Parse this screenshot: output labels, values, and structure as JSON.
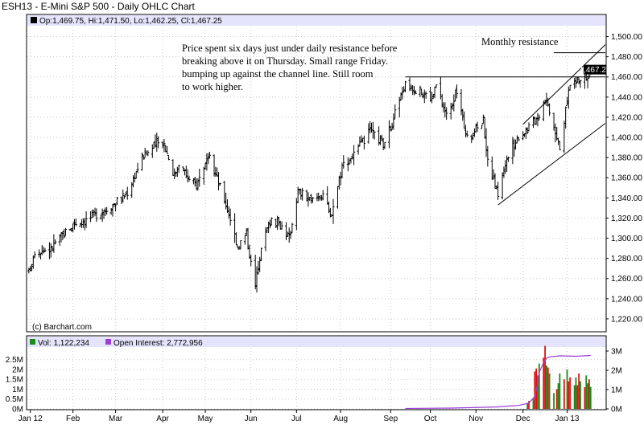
{
  "window": {
    "title": "ESH13 - E-Mini S&P 500 - Daily OHLC Chart"
  },
  "price_legend": {
    "text": "Op:1,469.75, Hi:1,471.50, Lo:1,462.25, Cl:1,467.25",
    "last_price": "1,467.25"
  },
  "volume_legend": {
    "volume_text": "Vol: 1,122,234",
    "oi_text": "Open Interest: 2,772,956"
  },
  "watermark": "(c) Barchart.com",
  "annotations": {
    "comment_lines": [
      "Price spent six days just under daily resistance before",
      "breaking above it on Thursday.  Small range Friday.",
      "bumping up against the channel line.  Still room",
      "to work higher."
    ],
    "monthly_resistance_label": "Monthly resistance"
  },
  "colors": {
    "panel_header": "#e4e4fc",
    "open_interest": "#9b3fd6",
    "volume_up": "#1a8a1a",
    "volume_down": "#e01010",
    "bars": "#000000"
  },
  "chart_data": [
    {
      "type": "ohlc",
      "title": "ESH13 - E-Mini S&P 500 - Daily OHLC Chart",
      "y_ticks": [
        1220,
        1240,
        1260,
        1280,
        1300,
        1320,
        1340,
        1360,
        1380,
        1400,
        1420,
        1440,
        1460,
        1480,
        1500
      ],
      "y_tick_labels": [
        "1,220.00",
        "1,240.00",
        "1,260.00",
        "1,280.00",
        "1,300.00",
        "1,320.00",
        "1,340.00",
        "1,360.00",
        "1,380.00",
        "1,400.00",
        "1,420.00",
        "1,440.00",
        "1,460.00",
        "1,480.00",
        "1,500.00"
      ],
      "ylim": [
        1208,
        1510
      ],
      "x_labels": [
        "Jan 12",
        "Feb",
        "Mar",
        "Apr",
        "May",
        "Jun",
        "Jul",
        "Aug",
        "Sep",
        "Oct",
        "Nov",
        "Dec",
        "Jan 13"
      ],
      "x_label_dates": [
        "2012-01-03",
        "2012-02-01",
        "2012-03-01",
        "2012-04-02",
        "2012-05-01",
        "2012-06-01",
        "2012-07-02",
        "2012-08-01",
        "2012-09-04",
        "2012-10-01",
        "2012-11-01",
        "2012-12-03",
        "2013-01-02"
      ],
      "x_range": [
        "2012-01-01",
        "2013-01-28"
      ],
      "last_bar": {
        "date": "2013-01-18",
        "open": 1469.75,
        "high": 1471.5,
        "low": 1462.25,
        "close": 1467.25
      },
      "anchors": [
        [
          "2012-01-02",
          1266
        ],
        [
          "2012-01-06",
          1288
        ],
        [
          "2012-01-17",
          1289
        ],
        [
          "2012-01-20",
          1296
        ],
        [
          "2012-02-02",
          1315
        ],
        [
          "2012-02-10",
          1318
        ],
        [
          "2012-02-17",
          1324
        ],
        [
          "2012-02-24",
          1330
        ],
        [
          "2012-03-06",
          1341
        ],
        [
          "2012-03-09",
          1346
        ],
        [
          "2012-03-19",
          1380
        ],
        [
          "2012-03-27",
          1391
        ],
        [
          "2012-04-02",
          1398
        ],
        [
          "2012-04-10",
          1362
        ],
        [
          "2012-04-13",
          1376
        ],
        [
          "2012-04-20",
          1357
        ],
        [
          "2012-04-25",
          1353
        ],
        [
          "2012-04-30",
          1372
        ],
        [
          "2012-05-04",
          1378
        ],
        [
          "2012-05-10",
          1355
        ],
        [
          "2012-05-18",
          1320
        ],
        [
          "2012-05-23",
          1292
        ],
        [
          "2012-05-29",
          1305
        ],
        [
          "2012-06-01",
          1275
        ],
        [
          "2012-06-04",
          1252
        ],
        [
          "2012-06-08",
          1294
        ],
        [
          "2012-06-15",
          1320
        ],
        [
          "2012-06-22",
          1312
        ],
        [
          "2012-06-27",
          1300
        ],
        [
          "2012-07-03",
          1347
        ],
        [
          "2012-07-12",
          1337
        ],
        [
          "2012-07-20",
          1345
        ],
        [
          "2012-07-25",
          1320
        ],
        [
          "2012-08-02",
          1372
        ],
        [
          "2012-08-10",
          1383
        ],
        [
          "2012-08-21",
          1406
        ],
        [
          "2012-08-31",
          1392
        ],
        [
          "2012-09-07",
          1425
        ],
        [
          "2012-09-14",
          1453
        ],
        [
          "2012-09-21",
          1448
        ],
        [
          "2012-10-02",
          1439
        ],
        [
          "2012-10-05",
          1451
        ],
        [
          "2012-10-12",
          1422
        ],
        [
          "2012-10-19",
          1446
        ],
        [
          "2012-10-26",
          1398
        ],
        [
          "2012-11-06",
          1418
        ],
        [
          "2012-11-09",
          1375
        ],
        [
          "2012-11-16",
          1344
        ],
        [
          "2012-11-21",
          1375
        ],
        [
          "2012-11-30",
          1402
        ],
        [
          "2012-12-07",
          1410
        ],
        [
          "2012-12-14",
          1423
        ],
        [
          "2012-12-18",
          1440
        ],
        [
          "2012-12-21",
          1428
        ],
        [
          "2012-12-28",
          1392
        ],
        [
          "2012-12-31",
          1416
        ],
        [
          "2013-01-04",
          1455
        ],
        [
          "2013-01-09",
          1455
        ],
        [
          "2013-01-14",
          1459
        ],
        [
          "2013-01-18",
          1467.25
        ]
      ],
      "lines": {
        "daily_resistance": {
          "from": [
            "2012-09-14",
            1460
          ],
          "to": [
            "2013-01-28",
            1460
          ]
        },
        "monthly_resistance": {
          "from": [
            "2012-12-24",
            1484
          ],
          "to": [
            "2013-01-28",
            1484
          ]
        },
        "channel_lower": {
          "from": [
            "2012-11-16",
            1333
          ],
          "to": [
            "2013-01-28",
            1414
          ]
        },
        "channel_upper": {
          "from": [
            "2012-12-03",
            1413
          ],
          "to": [
            "2013-01-28",
            1492
          ]
        }
      }
    },
    {
      "type": "bar",
      "title": "Volume / Open Interest",
      "y_ticks_left": [
        0,
        0.5,
        1,
        1.5,
        2,
        2.5
      ],
      "y_tick_labels_left": [
        "0M",
        "0.5M",
        "1M",
        "1.5M",
        "2M",
        "2.5M"
      ],
      "y_ticks_right": [
        0,
        1,
        2,
        3
      ],
      "y_tick_labels_right": [
        "0M",
        "1M",
        "2M",
        "3M"
      ],
      "volume_unit": "millions of contracts",
      "volume": [
        [
          "2012-12-06",
          0.3
        ],
        [
          "2012-12-07",
          0.4
        ],
        [
          "2012-12-10",
          0.5
        ],
        [
          "2012-12-11",
          1.9
        ],
        [
          "2012-12-12",
          2.05
        ],
        [
          "2012-12-13",
          1.7
        ],
        [
          "2012-12-14",
          2.3
        ],
        [
          "2012-12-17",
          2.6
        ],
        [
          "2012-12-18",
          3.2
        ],
        [
          "2012-12-19",
          2.2
        ],
        [
          "2012-12-20",
          2.1
        ],
        [
          "2012-12-21",
          1.8
        ],
        [
          "2012-12-24",
          0.8
        ],
        [
          "2012-12-26",
          1.0
        ],
        [
          "2012-12-27",
          1.3
        ],
        [
          "2012-12-28",
          1.8
        ],
        [
          "2012-12-31",
          1.5
        ],
        [
          "2013-01-02",
          2.0
        ],
        [
          "2013-01-03",
          1.4
        ],
        [
          "2013-01-04",
          1.6
        ],
        [
          "2013-01-07",
          1.2
        ],
        [
          "2013-01-08",
          1.6
        ],
        [
          "2013-01-09",
          1.2
        ],
        [
          "2013-01-10",
          1.8
        ],
        [
          "2013-01-11",
          1.4
        ],
        [
          "2013-01-14",
          1.1
        ],
        [
          "2013-01-15",
          1.7
        ],
        [
          "2013-01-16",
          1.3
        ],
        [
          "2013-01-17",
          1.5
        ],
        [
          "2013-01-18",
          1.12
        ]
      ],
      "open_interest": [
        [
          "2012-09-14",
          0.02
        ],
        [
          "2012-10-15",
          0.04
        ],
        [
          "2012-11-15",
          0.1
        ],
        [
          "2012-11-30",
          0.18
        ],
        [
          "2012-12-07",
          0.3
        ],
        [
          "2012-12-11",
          0.65
        ],
        [
          "2012-12-13",
          1.3
        ],
        [
          "2012-12-14",
          1.9
        ],
        [
          "2012-12-17",
          2.4
        ],
        [
          "2012-12-19",
          2.62
        ],
        [
          "2012-12-21",
          2.7
        ],
        [
          "2012-12-28",
          2.75
        ],
        [
          "2013-01-08",
          2.73
        ],
        [
          "2013-01-18",
          2.77
        ]
      ]
    }
  ]
}
